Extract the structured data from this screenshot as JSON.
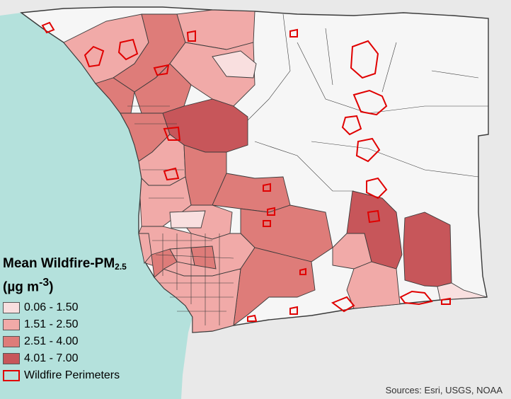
{
  "legend": {
    "title_main": "Mean Wildfire-PM",
    "title_sub": "2.5",
    "units_open": "(µg m",
    "units_sup": "-3",
    "units_close": ")",
    "classes": [
      {
        "label": "0.06 - 1.50",
        "color": "#f9dfdf"
      },
      {
        "label": "1.51 - 2.50",
        "color": "#f1aaa8"
      },
      {
        "label": "2.51 - 4.00",
        "color": "#de7c79"
      },
      {
        "label": "4.01 - 7.00",
        "color": "#c7565a"
      }
    ],
    "perimeter_label": "Wildfire Perimeters",
    "perimeter_color": "#e00000"
  },
  "sources": "Sources: Esri, USGS, NOAA",
  "colors": {
    "ocean": "#b4e1dc",
    "land": "#f4f4f4",
    "boundary": "#3a3a3a"
  }
}
